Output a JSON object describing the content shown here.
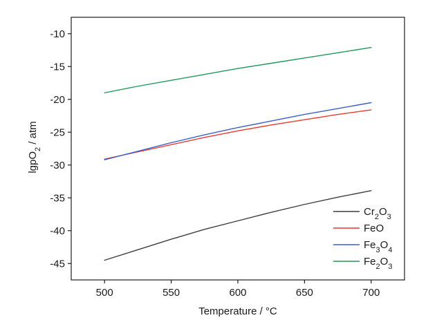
{
  "chart_data": {
    "type": "line",
    "title": "",
    "xlabel": "Temperature / °C",
    "ylabel": "lgpO2 / atm",
    "xlim": [
      475,
      725
    ],
    "ylim": [
      -47.5,
      -7.5
    ],
    "xticks": [
      500,
      550,
      600,
      650,
      700
    ],
    "yticks": [
      -10,
      -15,
      -20,
      -25,
      -30,
      -35,
      -40,
      -45
    ],
    "grid": false,
    "legend_position": "bottom-right",
    "series": [
      {
        "name": "Cr2O3",
        "name_parts": [
          [
            "Cr",
            ""
          ],
          [
            "2",
            "sub"
          ],
          [
            "O",
            ""
          ],
          [
            "3",
            "sub"
          ]
        ],
        "color": "#3d3d3d",
        "x": [
          500,
          525,
          550,
          575,
          600,
          625,
          650,
          675,
          700
        ],
        "y": [
          -44.5,
          -42.9,
          -41.3,
          -39.8,
          -38.5,
          -37.2,
          -36.0,
          -34.9,
          -33.9
        ]
      },
      {
        "name": "FeO",
        "name_parts": [
          [
            "FeO",
            ""
          ]
        ],
        "color": "#e8392f",
        "x": [
          500,
          525,
          550,
          575,
          600,
          625,
          650,
          675,
          700
        ],
        "y": [
          -29.1,
          -28.0,
          -26.9,
          -25.8,
          -24.8,
          -23.9,
          -23.1,
          -22.3,
          -21.6
        ]
      },
      {
        "name": "Fe3O4",
        "name_parts": [
          [
            "Fe",
            ""
          ],
          [
            "3",
            "sub"
          ],
          [
            "O",
            ""
          ],
          [
            "4",
            "sub"
          ]
        ],
        "color": "#3a5fc8",
        "x": [
          500,
          525,
          550,
          575,
          600,
          625,
          650,
          675,
          700
        ],
        "y": [
          -29.2,
          -27.9,
          -26.6,
          -25.4,
          -24.3,
          -23.3,
          -22.3,
          -21.4,
          -20.5
        ]
      },
      {
        "name": "Fe2O3",
        "name_parts": [
          [
            "Fe",
            ""
          ],
          [
            "2",
            "sub"
          ],
          [
            "O",
            ""
          ],
          [
            "3",
            "sub"
          ]
        ],
        "color": "#1e9a5a",
        "x": [
          500,
          525,
          550,
          575,
          600,
          625,
          650,
          675,
          700
        ],
        "y": [
          -19.0,
          -18.0,
          -17.1,
          -16.2,
          -15.3,
          -14.5,
          -13.7,
          -12.9,
          -12.1
        ]
      }
    ]
  }
}
